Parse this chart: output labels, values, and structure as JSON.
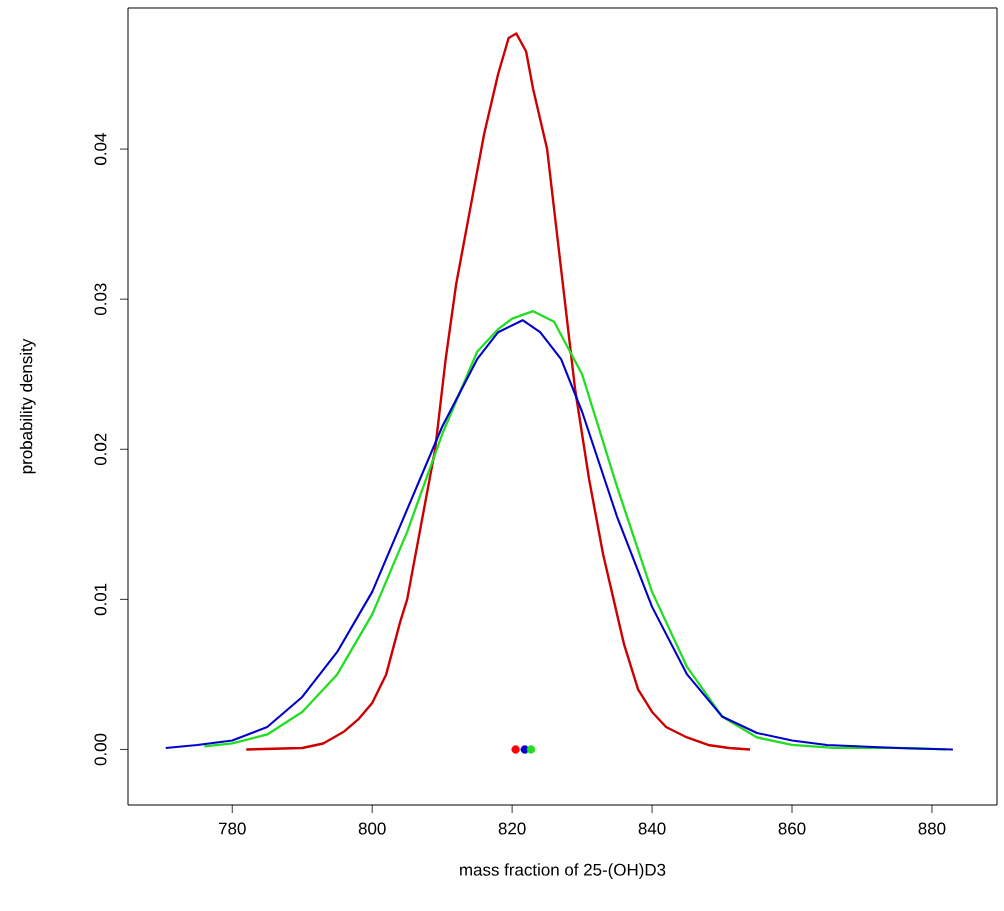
{
  "chart_data": {
    "type": "line",
    "xlabel": "mass fraction of 25-(OH)D3",
    "ylabel": "probability density",
    "xlim": [
      765.1,
      889.3
    ],
    "ylim": [
      -0.0037,
      0.0494
    ],
    "xticks": [
      780,
      800,
      820,
      840,
      860,
      880
    ],
    "yticks": [
      {
        "value": 0,
        "label": "0.00"
      },
      {
        "value": 0.01,
        "label": "0.01"
      },
      {
        "value": 0.02,
        "label": "0.02"
      },
      {
        "value": 0.03,
        "label": "0.03"
      },
      {
        "value": 0.04,
        "label": "0.04"
      }
    ],
    "grid": false,
    "series": [
      {
        "color": "#cc0000",
        "x": [
          782,
          790,
          793,
          796,
          798,
          800,
          802,
          804,
          805,
          807,
          809,
          810.5,
          812,
          814,
          816,
          818,
          819.5,
          820.6,
          822,
          823,
          825,
          827,
          829,
          831,
          833,
          834.5,
          836,
          838,
          840,
          842,
          845,
          848,
          851,
          854
        ],
        "values": [
          0,
          0.0001,
          0.0004,
          0.0012,
          0.002,
          0.0031,
          0.005,
          0.0085,
          0.01,
          0.015,
          0.02,
          0.026,
          0.031,
          0.036,
          0.041,
          0.045,
          0.0474,
          0.0477,
          0.0465,
          0.044,
          0.04,
          0.032,
          0.024,
          0.018,
          0.013,
          0.01,
          0.007,
          0.004,
          0.0025,
          0.0015,
          0.0008,
          0.0003,
          0.0001,
          0
        ]
      },
      {
        "color": "#22dd22",
        "x": [
          776,
          780,
          785,
          790,
          795,
          800,
          805,
          810,
          815,
          818,
          820,
          823,
          826,
          830,
          835,
          840,
          845,
          850,
          855,
          860,
          866,
          875,
          882
        ],
        "values": [
          0.0002,
          0.0004,
          0.001,
          0.0025,
          0.005,
          0.009,
          0.0145,
          0.021,
          0.0265,
          0.028,
          0.0287,
          0.0292,
          0.0285,
          0.025,
          0.0175,
          0.0105,
          0.0055,
          0.0022,
          0.0008,
          0.0003,
          0.0001,
          0.0001,
          0
        ]
      },
      {
        "color": "#0000cc",
        "x": [
          770.5,
          775,
          780,
          785,
          790,
          795,
          800,
          805,
          810,
          815,
          818,
          821.5,
          824,
          827,
          830,
          835,
          840,
          845,
          850,
          855,
          860,
          865,
          870,
          875,
          883
        ],
        "values": [
          0.0001,
          0.0003,
          0.0006,
          0.0015,
          0.0035,
          0.0065,
          0.0105,
          0.016,
          0.0215,
          0.026,
          0.0278,
          0.0286,
          0.0278,
          0.026,
          0.0225,
          0.0155,
          0.0095,
          0.005,
          0.0022,
          0.0011,
          0.0006,
          0.0003,
          0.0002,
          0.0001,
          0
        ]
      },
      {
        "type": "scatter",
        "marker": "circle",
        "color": "#ff0000",
        "x": [
          820.5
        ],
        "values": [
          0
        ]
      },
      {
        "type": "scatter",
        "marker": "circle",
        "color": "#0000cc",
        "x": [
          821.8
        ],
        "values": [
          0
        ]
      },
      {
        "type": "scatter",
        "marker": "circle",
        "color": "#22dd22",
        "x": [
          822.7
        ],
        "values": [
          0
        ]
      }
    ]
  }
}
